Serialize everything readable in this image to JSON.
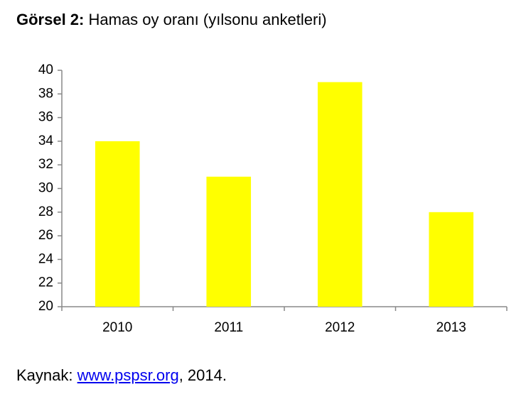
{
  "chart_data": {
    "type": "bar",
    "title_label": "Görsel 2:",
    "title": "Hamas oy oranı (yılsonu anketleri)",
    "categories": [
      "2010",
      "2011",
      "2012",
      "2013"
    ],
    "values": [
      34,
      31,
      39,
      28
    ],
    "color": "#ffff00",
    "ylim": [
      20,
      40
    ],
    "yticks": [
      20,
      22,
      24,
      26,
      28,
      30,
      32,
      34,
      36,
      38,
      40
    ],
    "grid": false,
    "source_label": "Kaynak:",
    "source_link": "www.pspsr.org",
    "source_year": ", 2014."
  }
}
